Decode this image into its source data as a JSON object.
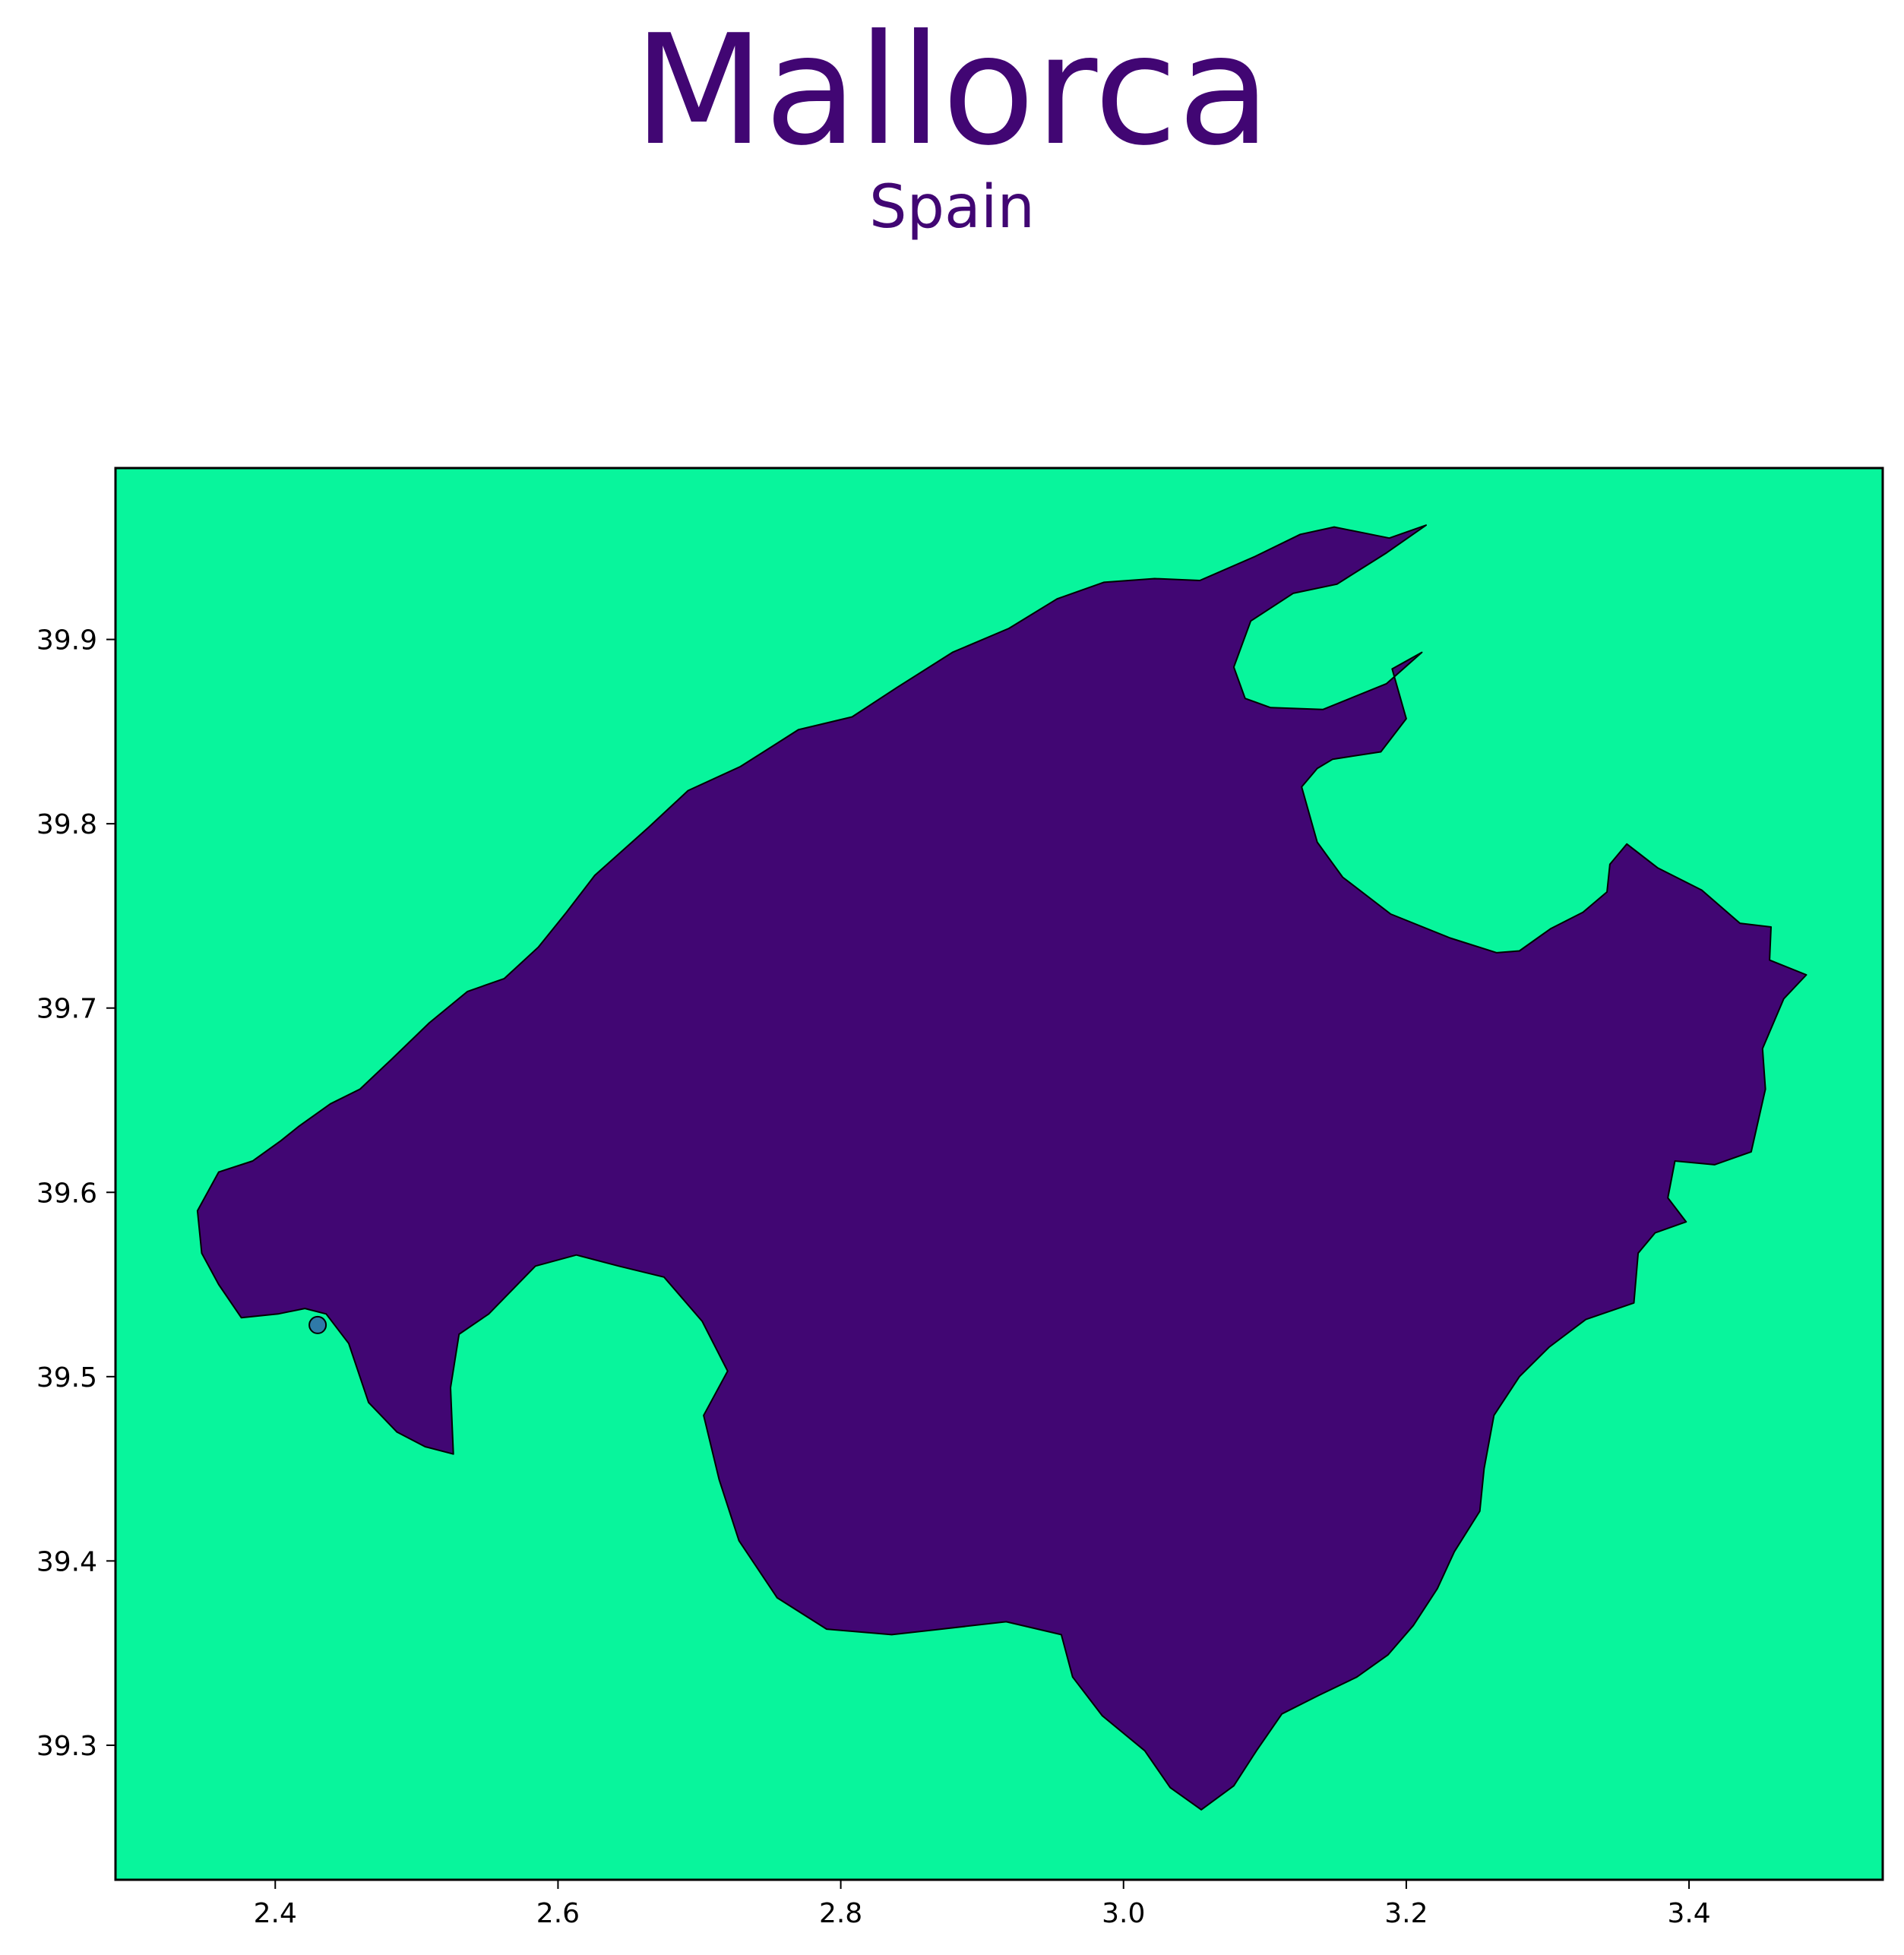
{
  "title": "Mallorca",
  "subtitle": "Spain",
  "colors": {
    "sea": "#08f59c",
    "land": "#410673",
    "title": "#410673",
    "marker": "#2f7aa8",
    "frame": "#000000"
  },
  "axes": {
    "xlim": [
      2.287,
      3.537
    ],
    "ylim": [
      39.227,
      39.993
    ],
    "xticks": [
      {
        "value": 2.4,
        "label": "2.4"
      },
      {
        "value": 2.6,
        "label": "2.6"
      },
      {
        "value": 2.8,
        "label": "2.8"
      },
      {
        "value": 3.0,
        "label": "3.0"
      },
      {
        "value": 3.2,
        "label": "3.2"
      },
      {
        "value": 3.4,
        "label": "3.4"
      }
    ],
    "yticks": [
      {
        "value": 39.3,
        "label": "39.3"
      },
      {
        "value": 39.4,
        "label": "39.4"
      },
      {
        "value": 39.5,
        "label": "39.5"
      },
      {
        "value": 39.6,
        "label": "39.6"
      },
      {
        "value": 39.7,
        "label": "39.7"
      },
      {
        "value": 39.8,
        "label": "39.8"
      },
      {
        "value": 39.9,
        "label": "39.9"
      }
    ]
  },
  "marker": {
    "lon": 2.43,
    "lat": 39.528
  },
  "island_outline": [
    [
      2.348,
      39.567
    ],
    [
      2.345,
      39.59
    ],
    [
      2.36,
      39.611
    ],
    [
      2.384,
      39.617
    ],
    [
      2.404,
      39.628
    ],
    [
      2.417,
      39.636
    ],
    [
      2.439,
      39.648
    ],
    [
      2.46,
      39.656
    ],
    [
      2.482,
      39.672
    ],
    [
      2.509,
      39.692
    ],
    [
      2.536,
      39.709
    ],
    [
      2.562,
      39.716
    ],
    [
      2.586,
      39.733
    ],
    [
      2.606,
      39.752
    ],
    [
      2.626,
      39.772
    ],
    [
      2.664,
      39.798
    ],
    [
      2.692,
      39.818
    ],
    [
      2.729,
      39.831
    ],
    [
      2.77,
      39.851
    ],
    [
      2.808,
      39.858
    ],
    [
      2.84,
      39.874
    ],
    [
      2.879,
      39.893
    ],
    [
      2.919,
      39.906
    ],
    [
      2.953,
      39.922
    ],
    [
      2.986,
      39.931
    ],
    [
      3.022,
      39.933
    ],
    [
      3.054,
      39.932
    ],
    [
      3.093,
      39.945
    ],
    [
      3.125,
      39.957
    ],
    [
      3.149,
      39.961
    ],
    [
      3.188,
      39.955
    ],
    [
      3.214,
      39.962
    ],
    [
      3.186,
      39.947
    ],
    [
      3.151,
      39.93
    ],
    [
      3.12,
      39.925
    ],
    [
      3.09,
      39.91
    ],
    [
      3.078,
      39.885
    ],
    [
      3.086,
      39.868
    ],
    [
      3.104,
      39.863
    ],
    [
      3.141,
      39.862
    ],
    [
      3.186,
      39.876
    ],
    [
      3.211,
      39.893
    ],
    [
      3.19,
      39.884
    ],
    [
      3.2,
      39.857
    ],
    [
      3.182,
      39.839
    ],
    [
      3.148,
      39.835
    ],
    [
      3.137,
      39.83
    ],
    [
      3.126,
      39.82
    ],
    [
      3.137,
      39.79
    ],
    [
      3.155,
      39.771
    ],
    [
      3.189,
      39.751
    ],
    [
      3.231,
      39.738
    ],
    [
      3.264,
      39.73
    ],
    [
      3.28,
      39.731
    ],
    [
      3.302,
      39.743
    ],
    [
      3.325,
      39.752
    ],
    [
      3.342,
      39.763
    ],
    [
      3.344,
      39.778
    ],
    [
      3.356,
      39.789
    ],
    [
      3.378,
      39.776
    ],
    [
      3.409,
      39.764
    ],
    [
      3.436,
      39.746
    ],
    [
      3.458,
      39.744
    ],
    [
      3.457,
      39.726
    ],
    [
      3.483,
      39.718
    ],
    [
      3.467,
      39.705
    ],
    [
      3.452,
      39.678
    ],
    [
      3.454,
      39.656
    ],
    [
      3.444,
      39.622
    ],
    [
      3.418,
      39.615
    ],
    [
      3.39,
      39.617
    ],
    [
      3.385,
      39.597
    ],
    [
      3.398,
      39.584
    ],
    [
      3.376,
      39.578
    ],
    [
      3.364,
      39.567
    ],
    [
      3.361,
      39.54
    ],
    [
      3.327,
      39.531
    ],
    [
      3.301,
      39.516
    ],
    [
      3.28,
      39.5
    ],
    [
      3.262,
      39.479
    ],
    [
      3.255,
      39.45
    ],
    [
      3.252,
      39.427
    ],
    [
      3.234,
      39.405
    ],
    [
      3.222,
      39.385
    ],
    [
      3.205,
      39.365
    ],
    [
      3.187,
      39.349
    ],
    [
      3.165,
      39.337
    ],
    [
      3.138,
      39.327
    ],
    [
      3.112,
      39.317
    ],
    [
      3.094,
      39.297
    ],
    [
      3.078,
      39.278
    ],
    [
      3.055,
      39.265
    ],
    [
      3.033,
      39.277
    ],
    [
      3.015,
      39.297
    ],
    [
      2.985,
      39.316
    ],
    [
      2.964,
      39.337
    ],
    [
      2.956,
      39.36
    ],
    [
      2.917,
      39.367
    ],
    [
      2.871,
      39.363
    ],
    [
      2.836,
      39.36
    ],
    [
      2.79,
      39.363
    ],
    [
      2.755,
      39.38
    ],
    [
      2.728,
      39.411
    ],
    [
      2.714,
      39.444
    ],
    [
      2.703,
      39.479
    ],
    [
      2.72,
      39.503
    ],
    [
      2.702,
      39.53
    ],
    [
      2.675,
      39.554
    ],
    [
      2.643,
      39.56
    ],
    [
      2.613,
      39.566
    ],
    [
      2.584,
      39.56
    ],
    [
      2.551,
      39.534
    ],
    [
      2.53,
      39.523
    ],
    [
      2.524,
      39.494
    ],
    [
      2.526,
      39.458
    ],
    [
      2.506,
      39.462
    ],
    [
      2.486,
      39.47
    ],
    [
      2.466,
      39.486
    ],
    [
      2.452,
      39.518
    ],
    [
      2.436,
      39.534
    ],
    [
      2.421,
      39.537
    ],
    [
      2.402,
      39.534
    ],
    [
      2.376,
      39.532
    ],
    [
      2.36,
      39.55
    ]
  ]
}
